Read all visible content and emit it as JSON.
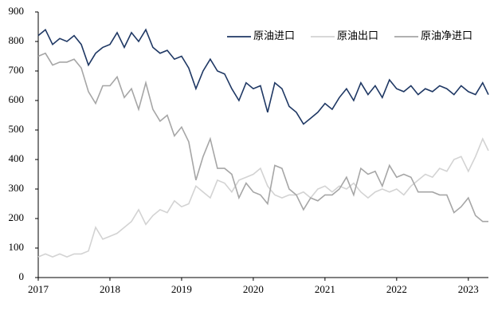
{
  "chart_data": {
    "type": "line",
    "x": [
      2017,
      2017.1,
      2017.2,
      2017.3,
      2017.4,
      2017.5,
      2017.6,
      2017.7,
      2017.8,
      2017.9,
      2018,
      2018.1,
      2018.2,
      2018.3,
      2018.4,
      2018.5,
      2018.6,
      2018.7,
      2018.8,
      2018.9,
      2019,
      2019.1,
      2019.2,
      2019.3,
      2019.4,
      2019.5,
      2019.6,
      2019.7,
      2019.8,
      2019.9,
      2020,
      2020.1,
      2020.2,
      2020.3,
      2020.4,
      2020.5,
      2020.6,
      2020.7,
      2020.8,
      2020.9,
      2021,
      2021.1,
      2021.2,
      2021.3,
      2021.4,
      2021.5,
      2021.6,
      2021.7,
      2021.8,
      2021.9,
      2022,
      2022.1,
      2022.2,
      2022.3,
      2022.4,
      2022.5,
      2022.6,
      2022.7,
      2022.8,
      2022.9,
      2023,
      2023.1,
      2023.2,
      2023.28
    ],
    "series": [
      {
        "name": "原油进口",
        "color": "#1f3864",
        "values": [
          820,
          840,
          790,
          810,
          800,
          820,
          790,
          720,
          760,
          780,
          790,
          830,
          780,
          830,
          800,
          840,
          780,
          760,
          770,
          740,
          750,
          710,
          640,
          700,
          740,
          700,
          690,
          640,
          600,
          660,
          640,
          650,
          560,
          660,
          640,
          580,
          560,
          520,
          540,
          560,
          590,
          570,
          610,
          640,
          600,
          660,
          620,
          650,
          610,
          670,
          640,
          630,
          650,
          620,
          640,
          630,
          650,
          640,
          620,
          650,
          630,
          620,
          660,
          620
        ]
      },
      {
        "name": "原油出口",
        "color": "#d3d3d3",
        "values": [
          70,
          80,
          70,
          80,
          70,
          80,
          80,
          90,
          170,
          130,
          140,
          150,
          170,
          190,
          230,
          180,
          210,
          230,
          220,
          260,
          240,
          250,
          310,
          290,
          270,
          330,
          320,
          290,
          330,
          340,
          350,
          370,
          310,
          280,
          270,
          280,
          280,
          290,
          270,
          300,
          310,
          290,
          310,
          300,
          320,
          290,
          270,
          290,
          300,
          290,
          300,
          280,
          310,
          330,
          350,
          340,
          370,
          360,
          400,
          410,
          360,
          410,
          470,
          430
        ]
      },
      {
        "name": "原油净进口",
        "color": "#a6a6a6",
        "values": [
          750,
          760,
          720,
          730,
          730,
          740,
          710,
          630,
          590,
          650,
          650,
          680,
          610,
          640,
          570,
          660,
          570,
          530,
          550,
          480,
          510,
          460,
          330,
          410,
          470,
          370,
          370,
          350,
          270,
          320,
          290,
          280,
          250,
          380,
          370,
          300,
          280,
          230,
          270,
          260,
          280,
          280,
          300,
          340,
          280,
          370,
          350,
          360,
          310,
          380,
          340,
          350,
          340,
          290,
          290,
          290,
          280,
          280,
          220,
          240,
          270,
          210,
          190,
          190
        ]
      }
    ],
    "xlim": [
      2017,
      2023.28
    ],
    "xticks": [
      2017,
      2018,
      2019,
      2020,
      2021,
      2022,
      2023
    ],
    "ylim": [
      0,
      900
    ],
    "yticks": [
      0,
      100,
      200,
      300,
      400,
      500,
      600,
      700,
      800,
      900
    ],
    "legend": "upper right"
  }
}
